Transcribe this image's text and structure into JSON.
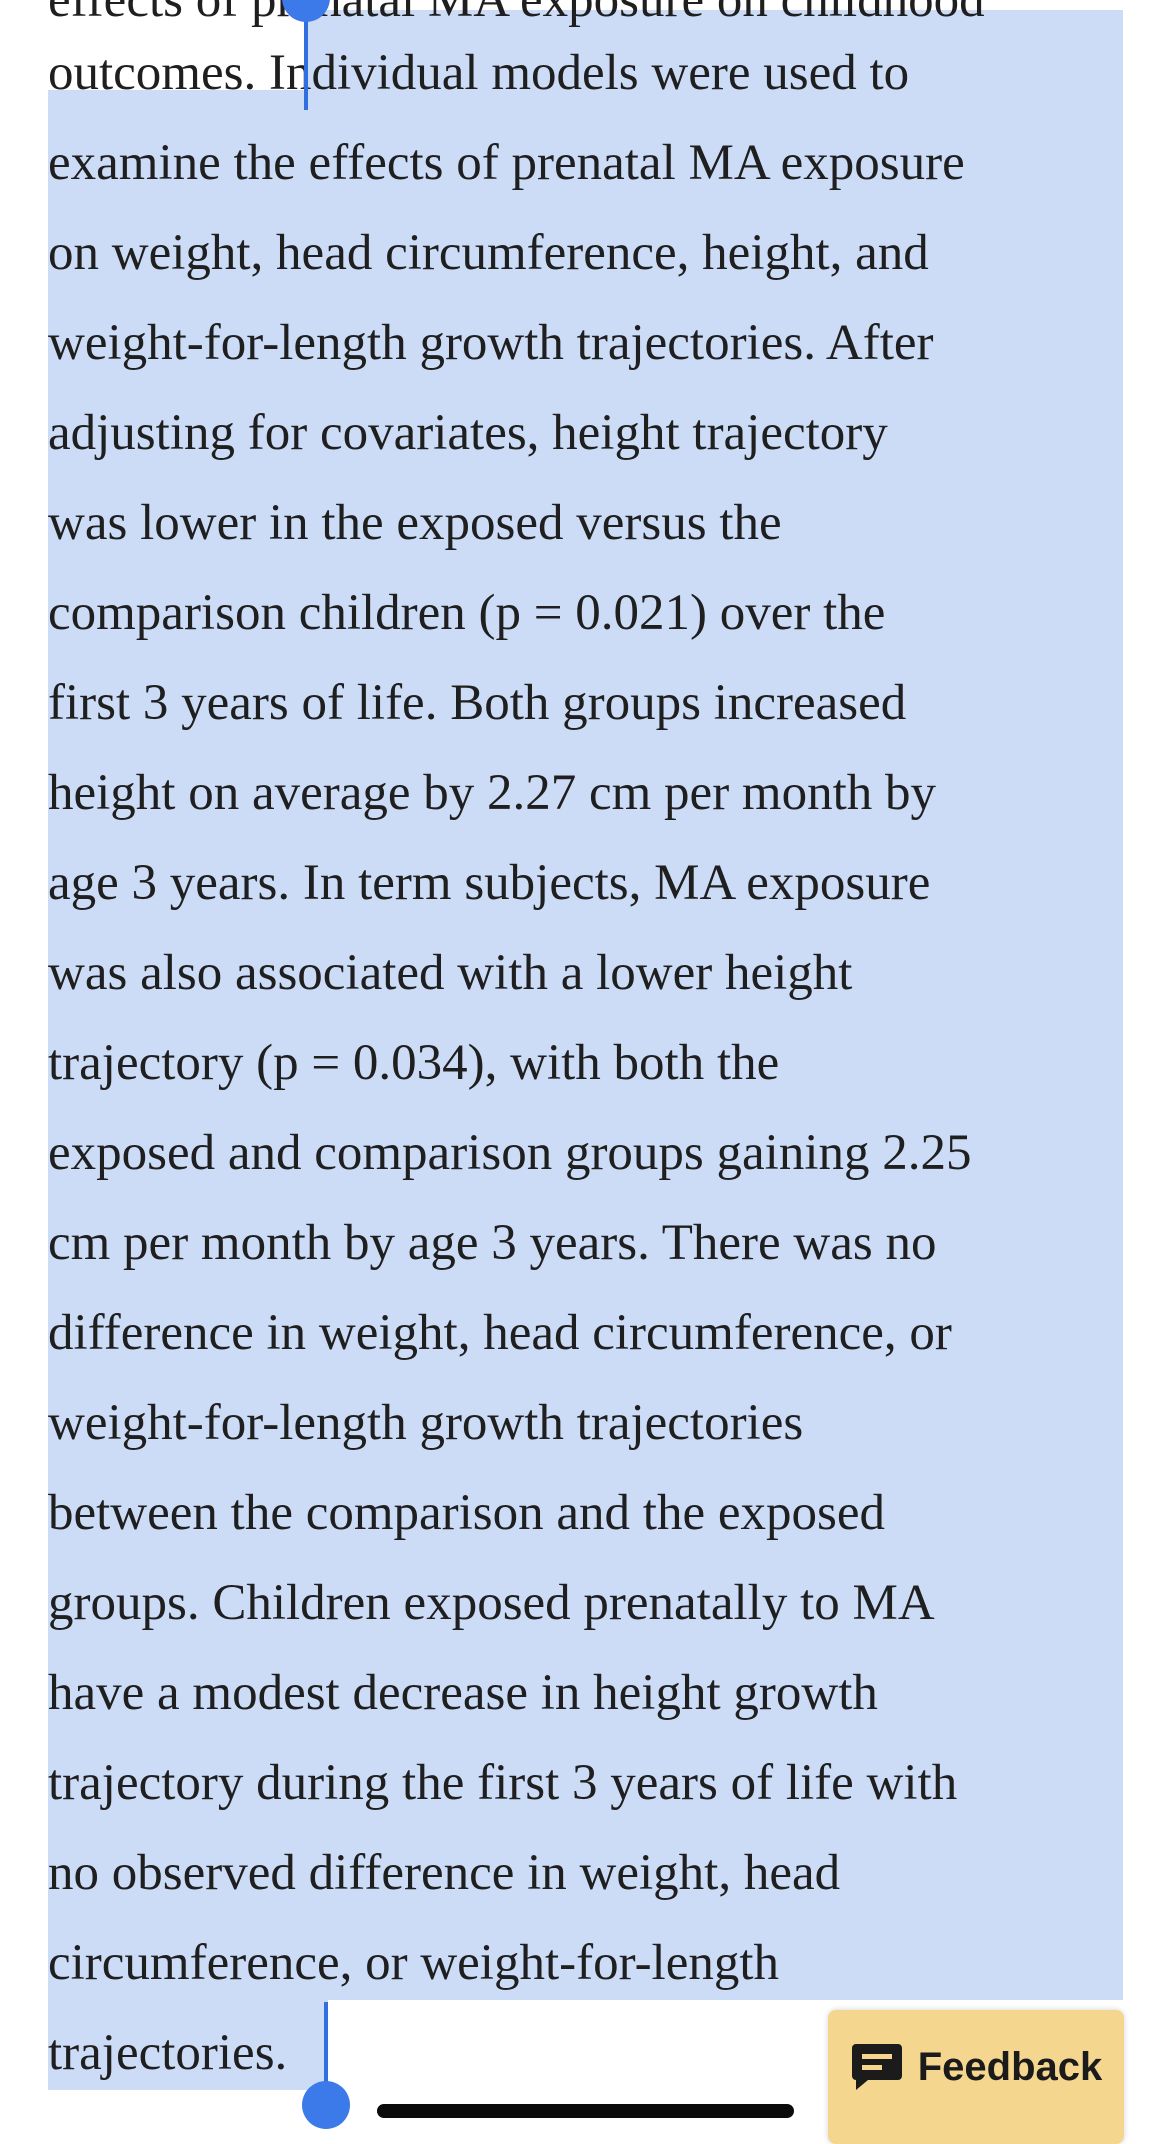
{
  "article": {
    "lines": [
      "effects of prenatal MA exposure on childhood",
      "outcomes. Individual models were used to",
      "examine the effects of prenatal MA exposure",
      "on weight, head circumference, height, and",
      "weight-for-length growth trajectories. After",
      "adjusting for covariates, height trajectory",
      "was lower in the exposed versus the",
      "comparison children (p = 0.021) over the",
      "first 3 years of life. Both groups increased",
      "height on average by 2.27 cm per month by",
      "age 3 years. In term subjects, MA exposure",
      "was also associated with a lower height",
      "trajectory (p = 0.034), with both the",
      "exposed and comparison groups gaining 2.25",
      "cm per month by age 3 years. There was no",
      "difference in weight, head circumference, or",
      "weight-for-length growth trajectories",
      "between the comparison and the exposed",
      "groups. Children exposed prenatally to MA",
      "have a modest decrease in height growth",
      "trajectory during the first 3 years of life with",
      "no observed difference in weight, head",
      "circumference, or weight-for-length",
      "trajectories."
    ]
  },
  "feedback": {
    "label": "Feedback",
    "icon": "chat-bubble-icon",
    "color": "#f4d68f"
  },
  "selection": {
    "color": "#ccdcf7",
    "handle_color": "#3b7ae8"
  }
}
